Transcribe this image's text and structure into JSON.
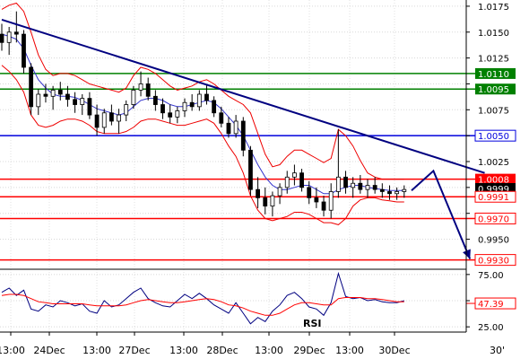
{
  "chart_data": [
    {
      "type": "candlestick",
      "instrument_panel": "price",
      "y_ticks": [
        1.0175,
        1.015,
        1.0125,
        1.01,
        1.0075,
        1.005,
        1.0025,
        1.0,
        0.9975,
        0.995
      ],
      "y_tick_labels": [
        "1.0175",
        "1.0150",
        "1.0125",
        "",
        "1.0075",
        "",
        "1.0025",
        "",
        "",
        "0.9950"
      ],
      "ylim": [
        0.9921,
        1.0181
      ],
      "x_ticks": [
        "13:00",
        "24Dec",
        "13:00",
        "27Dec",
        "13:00",
        "28Dec",
        "13:00",
        "29Dec",
        "13:00",
        "30Dec"
      ],
      "candles": [
        [
          1.0148,
          1.0158,
          1.0132,
          1.014
        ],
        [
          1.014,
          1.0155,
          1.0128,
          1.015
        ],
        [
          1.015,
          1.017,
          1.014,
          1.0148
        ],
        [
          1.0148,
          1.0152,
          1.011,
          1.0116
        ],
        [
          1.0116,
          1.012,
          1.007,
          1.0078
        ],
        [
          1.0078,
          1.0095,
          1.007,
          1.009
        ],
        [
          1.009,
          1.01,
          1.0082,
          1.0088
        ],
        [
          1.0088,
          1.0098,
          1.0075,
          1.0094
        ],
        [
          1.0094,
          1.0102,
          1.0084,
          1.009
        ],
        [
          1.009,
          1.0098,
          1.0078,
          1.0085
        ],
        [
          1.0085,
          1.0092,
          1.0072,
          1.008
        ],
        [
          1.008,
          1.009,
          1.007,
          1.0086
        ],
        [
          1.0086,
          1.0092,
          1.0066,
          1.007
        ],
        [
          1.007,
          1.008,
          1.005,
          1.0058
        ],
        [
          1.0058,
          1.0076,
          1.0052,
          1.0072
        ],
        [
          1.0072,
          1.008,
          1.006,
          1.0064
        ],
        [
          1.0064,
          1.0076,
          1.0052,
          1.007
        ],
        [
          1.007,
          1.0084,
          1.0064,
          1.008
        ],
        [
          1.008,
          1.0098,
          1.0076,
          1.0094
        ],
        [
          1.0094,
          1.0112,
          1.0088,
          1.01
        ],
        [
          1.01,
          1.0106,
          1.0084,
          1.0088
        ],
        [
          1.0088,
          1.0094,
          1.0074,
          1.008
        ],
        [
          1.008,
          1.0086,
          1.0066,
          1.0072
        ],
        [
          1.0072,
          1.008,
          1.0062,
          1.0068
        ],
        [
          1.0068,
          1.0078,
          1.0062,
          1.0074
        ],
        [
          1.0074,
          1.0086,
          1.0068,
          1.0082
        ],
        [
          1.0082,
          1.009,
          1.0074,
          1.0078
        ],
        [
          1.0078,
          1.0094,
          1.0074,
          1.009
        ],
        [
          1.009,
          1.01,
          1.008,
          1.0084
        ],
        [
          1.0084,
          1.0088,
          1.0068,
          1.0072
        ],
        [
          1.0072,
          1.0078,
          1.0058,
          1.0062
        ],
        [
          1.0062,
          1.0068,
          1.0048,
          1.0052
        ],
        [
          1.0052,
          1.007,
          1.0048,
          1.0064
        ],
        [
          1.0064,
          1.0068,
          1.003,
          1.0036
        ],
        [
          1.0036,
          1.004,
          0.9992,
          0.9998
        ],
        [
          0.9998,
          1.001,
          0.998,
          0.999
        ],
        [
          0.999,
          1.0,
          0.9974,
          0.9982
        ],
        [
          0.9982,
          0.9996,
          0.9972,
          0.9992
        ],
        [
          0.9992,
          1.0004,
          0.9984,
          1.0
        ],
        [
          1.0,
          1.0016,
          0.9994,
          1.001
        ],
        [
          1.001,
          1.0022,
          1.0002,
          1.0014
        ],
        [
          1.0014,
          1.0018,
          0.9996,
          1.0
        ],
        [
          1.0,
          1.0006,
          0.9984,
          0.999
        ],
        [
          0.999,
          1.0,
          0.998,
          0.9986
        ],
        [
          0.9986,
          0.9992,
          0.9972,
          0.9978
        ],
        [
          0.9978,
          1.0004,
          0.997,
          0.9996
        ],
        [
          0.9996,
          1.0056,
          0.999,
          1.001
        ],
        [
          1.001,
          1.0016,
          0.9994,
          1.0
        ],
        [
          1.0,
          1.001,
          0.999,
          1.0004
        ],
        [
          1.0004,
          1.0012,
          0.9994,
          0.9998
        ],
        [
          0.9998,
          1.0008,
          0.999,
          1.0002
        ],
        [
          1.0002,
          1.001,
          0.9994,
          0.9998
        ],
        [
          0.9998,
          1.0004,
          0.999,
          0.9996
        ],
        [
          0.9996,
          1.0002,
          0.9988,
          0.9994
        ],
        [
          0.9994,
          1.0,
          0.9988,
          0.9996
        ],
        [
          0.9996,
          1.0002,
          0.999,
          0.9998
        ]
      ],
      "bollinger": {
        "upper": [
          1.0172,
          1.0176,
          1.0178,
          1.017,
          1.015,
          1.0128,
          1.0114,
          1.0108,
          1.011,
          1.011,
          1.0108,
          1.0104,
          1.01,
          1.0098,
          1.0096,
          1.0094,
          1.0092,
          1.0096,
          1.0108,
          1.0116,
          1.0114,
          1.011,
          1.0104,
          1.0098,
          1.0094,
          1.0096,
          1.0098,
          1.0102,
          1.0104,
          1.01,
          1.0094,
          1.0088,
          1.0084,
          1.008,
          1.0072,
          1.0052,
          1.0032,
          1.002,
          1.0022,
          1.003,
          1.0036,
          1.0036,
          1.0032,
          1.0028,
          1.0024,
          1.0028,
          1.0056,
          1.005,
          1.004,
          1.0026,
          1.0014,
          1.001,
          1.0008,
          1.0008,
          1.0008,
          1.0008
        ],
        "lower": [
          1.0118,
          1.0112,
          1.0104,
          1.0092,
          1.007,
          1.006,
          1.0058,
          1.006,
          1.0064,
          1.0066,
          1.0066,
          1.0064,
          1.006,
          1.0054,
          1.0052,
          1.0052,
          1.0052,
          1.0054,
          1.0058,
          1.0064,
          1.0066,
          1.0066,
          1.0064,
          1.0062,
          1.006,
          1.006,
          1.0062,
          1.0064,
          1.0066,
          1.0062,
          1.0052,
          1.004,
          1.003,
          1.0014,
          0.9992,
          0.9978,
          0.997,
          0.9968,
          0.997,
          0.9972,
          0.9976,
          0.9976,
          0.9974,
          0.997,
          0.9966,
          0.9966,
          0.9964,
          0.997,
          0.9982,
          0.9988,
          0.999,
          0.999,
          0.9988,
          0.9987,
          0.9986,
          0.9986
        ]
      },
      "moving_average": [
        1.0148,
        1.0146,
        1.0143,
        1.0134,
        1.0118,
        1.0104,
        1.0096,
        1.009,
        1.0088,
        1.0088,
        1.0087,
        1.0084,
        1.008,
        1.0076,
        1.0074,
        1.0072,
        1.007,
        1.0072,
        1.0078,
        1.0084,
        1.0086,
        1.0086,
        1.0084,
        1.008,
        1.0078,
        1.0078,
        1.008,
        1.0082,
        1.0084,
        1.0082,
        1.0076,
        1.0068,
        1.006,
        1.005,
        1.0036,
        1.0022,
        1.001,
        1.0002,
        0.9998,
        0.9998,
        1.0,
        1.0002,
        1.0002,
        0.9998,
        0.9994,
        0.9994,
        0.9998,
        1.0,
        1.0002,
        1.0002,
        1.0,
        0.9999,
        0.9998,
        0.9997,
        0.9997,
        0.9997
      ],
      "trendline": {
        "from_candle": 0,
        "from_value": 1.0162,
        "to_candle": 66,
        "to_value": 1.0014
      },
      "levels": [
        {
          "value": 1.011,
          "label": "1.0110",
          "color": "#008000",
          "style": "box-label"
        },
        {
          "value": 1.0095,
          "label": "1.0095",
          "color": "#008000",
          "style": "box-label"
        },
        {
          "value": 1.005,
          "label": "1.0050",
          "color": "#0000dd",
          "style": "outline-label"
        },
        {
          "value": 1.0008,
          "label": "1.0008",
          "color": "#ff0000",
          "style": "box-label"
        },
        {
          "value": 0.9999,
          "label": "0.9999",
          "color": "#000000",
          "style": "current-price"
        },
        {
          "value": 0.9991,
          "label": "0.9991",
          "color": "#ff0000",
          "style": "outline-label"
        },
        {
          "value": 0.997,
          "label": "0.9970",
          "color": "#ff0000",
          "style": "outline-label"
        },
        {
          "value": 0.993,
          "label": "0.9930",
          "color": "#ff0000",
          "style": "outline-label"
        }
      ],
      "projection": [
        {
          "candle": 56,
          "value": 0.9997
        },
        {
          "candle": 59,
          "value": 1.0016
        },
        {
          "candle": 64,
          "value": 0.9931
        }
      ]
    },
    {
      "type": "line",
      "instrument_panel": "indicator",
      "title": "RSI",
      "y_ticks": [
        75,
        50,
        25
      ],
      "y_tick_labels": [
        "75.00",
        "",
        "25.00"
      ],
      "ylim": [
        20,
        80
      ],
      "current_value": 47.39,
      "current_label": "47.39",
      "series": [
        {
          "color": "#000080",
          "values": [
            58,
            62,
            55,
            60,
            42,
            40,
            46,
            44,
            50,
            48,
            45,
            47,
            40,
            38,
            50,
            44,
            46,
            52,
            58,
            62,
            52,
            48,
            45,
            44,
            50,
            56,
            52,
            57,
            52,
            46,
            42,
            38,
            48,
            38,
            28,
            34,
            30,
            40,
            46,
            55,
            58,
            52,
            44,
            42,
            36,
            48,
            76,
            54,
            52,
            53,
            50,
            51,
            49,
            48,
            48,
            50
          ]
        },
        {
          "color": "#ff0000",
          "values": [
            55,
            56,
            56,
            55,
            52,
            49,
            48,
            47,
            47,
            47,
            47,
            47,
            46,
            45,
            45,
            45,
            45,
            46,
            48,
            50,
            51,
            50,
            49,
            48,
            48,
            49,
            50,
            51,
            52,
            51,
            49,
            46,
            45,
            43,
            40,
            38,
            36,
            36,
            38,
            42,
            46,
            48,
            48,
            47,
            46,
            46,
            52,
            53,
            53,
            53,
            52,
            52,
            51,
            50,
            49,
            49
          ]
        }
      ]
    }
  ],
  "footer": {
    "corner_label": "30'"
  }
}
